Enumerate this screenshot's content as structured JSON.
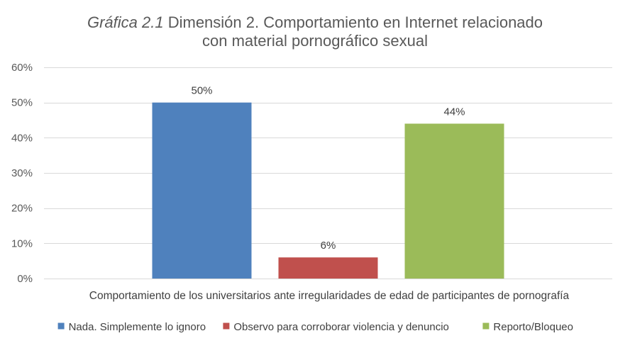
{
  "chart_data": {
    "type": "bar",
    "title_prefix": "Gráfica 2.1",
    "title_line1": "Dimensión 2. Comportamiento en Internet relacionado",
    "title_line2": "con material pornográfico sexual",
    "categories": [
      "Comportamiento de los universitarios ante irregularidades de edad  de participantes de pornografía"
    ],
    "series": [
      {
        "name": "Nada. Simplemente lo ignoro",
        "values": [
          50
        ],
        "label": "50%",
        "color": "#4F81BD"
      },
      {
        "name": "Observo para corroborar violencia  y denuncio",
        "values": [
          6
        ],
        "label": "6%",
        "color": "#C0504D"
      },
      {
        "name": "Reporto/Bloqueo",
        "values": [
          44
        ],
        "label": "44%",
        "color": "#9BBB59"
      }
    ],
    "ylim": [
      0,
      60
    ],
    "yticks": [
      {
        "value": 0,
        "label": "0%"
      },
      {
        "value": 10,
        "label": "10%"
      },
      {
        "value": 20,
        "label": "20%"
      },
      {
        "value": 30,
        "label": "30%"
      },
      {
        "value": 40,
        "label": "40%"
      },
      {
        "value": 50,
        "label": "50%"
      },
      {
        "value": 60,
        "label": "60%"
      }
    ],
    "grid": true,
    "legend_position": "bottom"
  }
}
